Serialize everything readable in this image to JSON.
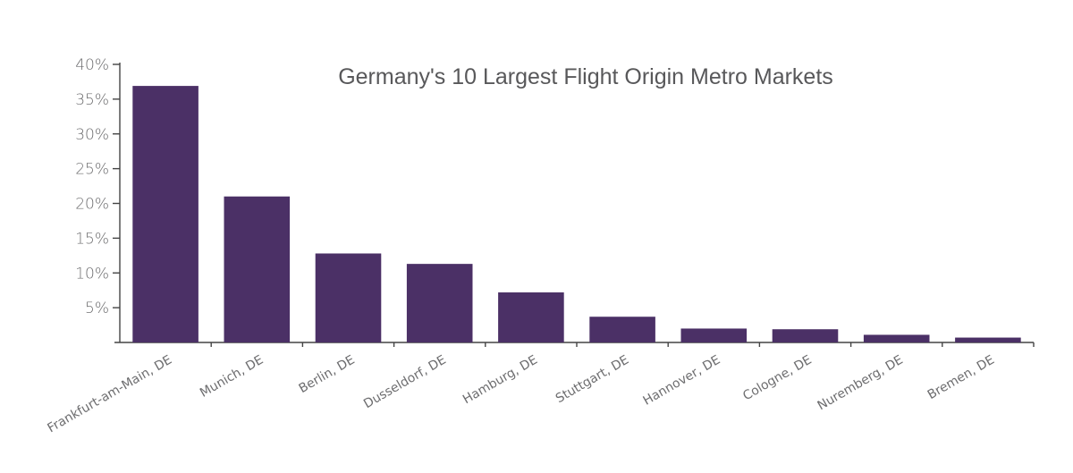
{
  "chart_data": {
    "type": "bar",
    "title": "Germany's 10 Largest Flight Origin Metro Markets",
    "xlabel": "",
    "ylabel": "",
    "categories": [
      "Frankfurt-am-Main, DE",
      "Munich, DE",
      "Berlin, DE",
      "Dusseldorf, DE",
      "Hamburg, DE",
      "Stuttgart, DE",
      "Hannover, DE",
      "Cologne, DE",
      "Nuremberg, DE",
      "Bremen, DE"
    ],
    "values": [
      36.9,
      21.0,
      12.8,
      11.3,
      7.2,
      3.7,
      2.0,
      1.9,
      1.1,
      0.7
    ],
    "ylim": [
      0,
      40
    ],
    "yticks": [
      5,
      10,
      15,
      20,
      25,
      30,
      35,
      40
    ],
    "ytick_labels": [
      "5%",
      "10%",
      "15%",
      "20%",
      "25%",
      "30%",
      "35%",
      "40%"
    ],
    "grid": false,
    "legend": "none",
    "bar_color": "#4b3066"
  }
}
